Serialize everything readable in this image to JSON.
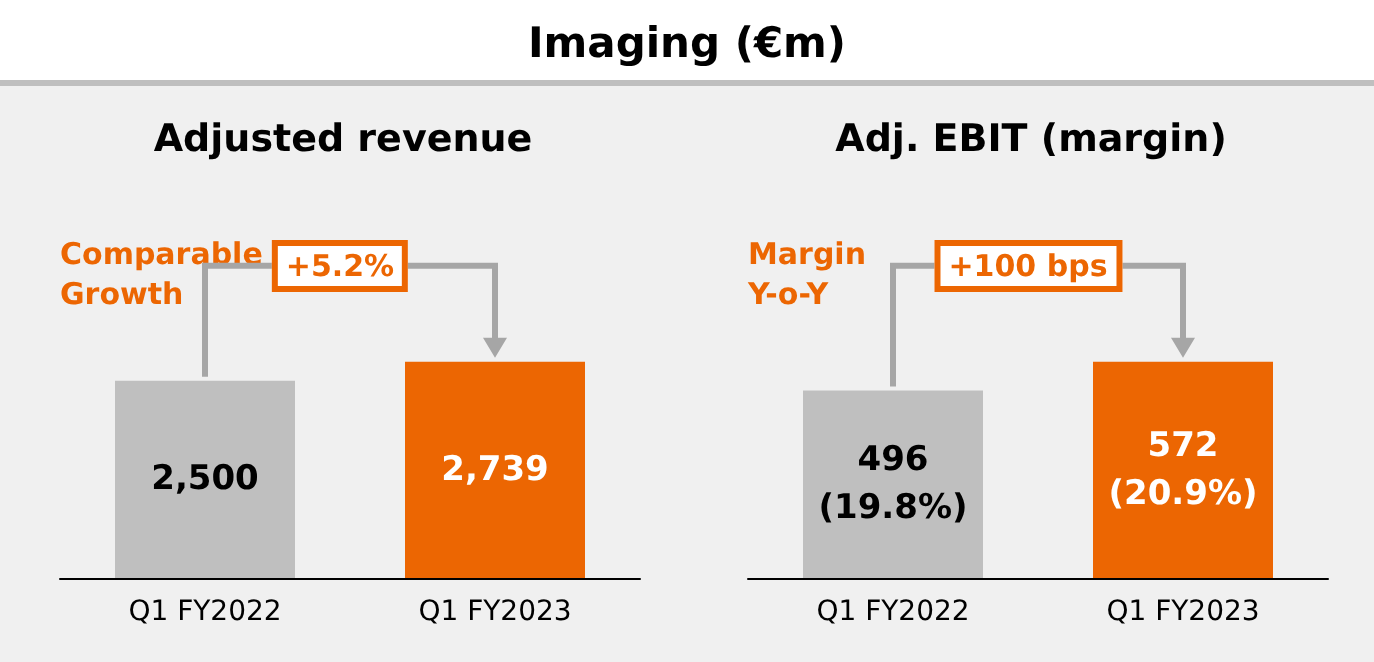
{
  "chart_data": [
    {
      "type": "other",
      "title": "Imaging (€m)"
    },
    {
      "type": "bar",
      "title": "Adjusted revenue",
      "categories": [
        "Q1 FY2022",
        "Q1 FY2023"
      ],
      "values": [
        2500,
        2739
      ],
      "colors": [
        "#bfbfbf",
        "#ec6602"
      ],
      "value_labels": [
        "2,500",
        "2,739"
      ],
      "tick_labels": "x",
      "annotations": [
        "Comparable\nGrowth",
        "+5.2%"
      ]
    },
    {
      "type": "bar",
      "title": "Adj. EBIT (margin)",
      "categories": [
        "Q1 FY2022",
        "Q1 FY2023"
      ],
      "values": [
        496,
        572
      ],
      "colors": [
        "#bfbfbf",
        "#ec6602"
      ],
      "value_labels": [
        "496\n(19.8%)",
        "572\n(20.9%)"
      ],
      "tick_labels": "x",
      "annotations": [
        "Margin\nY-o-Y",
        "+100 bps"
      ]
    }
  ]
}
